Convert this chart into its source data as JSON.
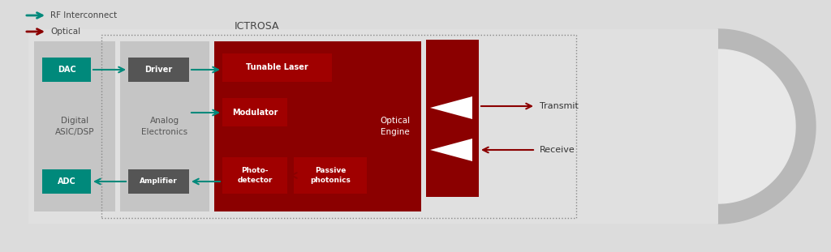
{
  "bg_color": "#f0f0f0",
  "fig_bg": "#e8e8e8",
  "dark_red": "#8B0000",
  "teal": "#008080",
  "dark_gray": "#555555",
  "light_gray": "#aaaaaa",
  "mid_gray": "#cccccc",
  "white": "#ffffff",
  "ictrosa_label": "ICTROSA",
  "legend_rf": "RF Interconnect",
  "legend_opt": "Optical",
  "blocks": {
    "DAC": {
      "label": "DAC",
      "color": "#007f6e"
    },
    "ADC": {
      "label": "ADC",
      "color": "#007f6e"
    },
    "Driver": {
      "label": "Driver",
      "color": "#555555"
    },
    "Amplifier": {
      "label": "Amplifier",
      "color": "#555555"
    },
    "TunableLaser": {
      "label": "Tunable Laser",
      "color": "#8B0000"
    },
    "Modulator": {
      "label": "Modulator",
      "color": "#8B0000"
    },
    "Photodetector": {
      "label": "Photo-\ndetector",
      "color": "#8B0000"
    },
    "PassivePhotonics": {
      "label": "Passive\nphotonics",
      "color": "#8B0000"
    }
  },
  "section_labels": {
    "Digital": "Digital\nASIC/DSP",
    "Analog": "Analog\nElectronics",
    "Optical": "Optical\nEngine"
  },
  "transmit_label": "Transmit",
  "receive_label": "Receive"
}
